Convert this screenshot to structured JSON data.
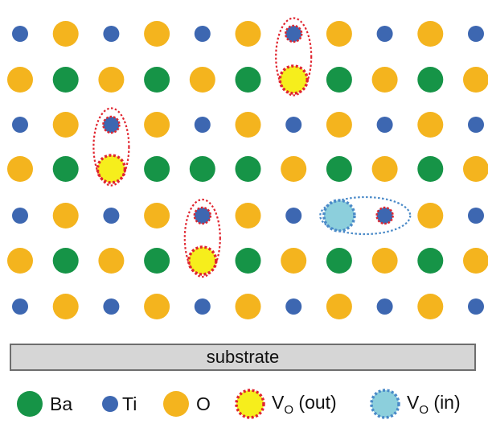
{
  "colors": {
    "ba": "#169447",
    "ti": "#3d67b1",
    "o": "#f4b41e",
    "vo_out_fill": "#f6ee1c",
    "vo_out_ring": "#e0252f",
    "vo_in_fill": "#8ccfdc",
    "vo_in_ring": "#4a8ac8",
    "ellipse_red": "#e0252f",
    "ellipse_blue": "#4a8ac8"
  },
  "lattice": {
    "rows": [
      [
        "ti",
        "o",
        "ti",
        "o",
        "ti",
        "o",
        "ti*",
        "o",
        "ti",
        "o",
        "ti"
      ],
      [
        "o",
        "ba",
        "o",
        "ba",
        "o",
        "ba",
        "vo_out",
        "ba",
        "o",
        "ba",
        "o"
      ],
      [
        "ti",
        "o",
        "ti*",
        "o",
        "ti",
        "o",
        "ti",
        "o",
        "ti",
        "o",
        "ti"
      ],
      [
        "o",
        "ba",
        "vo_out",
        "ba",
        "ba",
        "ba",
        "o",
        "ba",
        "o",
        "ba",
        "o"
      ],
      [
        "ti",
        "o",
        "ti",
        "o",
        "ti*",
        "o",
        "ti",
        "vo_in",
        "ti*",
        "o",
        "ti"
      ],
      [
        "o",
        "ba",
        "o",
        "ba",
        "vo_out",
        "ba",
        "o",
        "ba",
        "o",
        "ba",
        "o"
      ],
      [
        "ti",
        "o",
        "ti",
        "o",
        "ti",
        "o",
        "ti",
        "o",
        "ti",
        "o",
        "ti"
      ]
    ],
    "defect_pairs": [
      {
        "type": "out",
        "row": 0,
        "col": 6,
        "span": 2
      },
      {
        "type": "out",
        "row": 2,
        "col": 2,
        "span": 2
      },
      {
        "type": "out",
        "row": 4,
        "col": 4,
        "span": 2
      },
      {
        "type": "in",
        "row": 4,
        "col": 7,
        "span_cols": 2
      }
    ]
  },
  "substrate": {
    "label": "substrate"
  },
  "legend": {
    "ba": "Ba",
    "ti": "Ti",
    "o": "O",
    "vo_out": {
      "main": "V",
      "sub": "O",
      "suffix": " (out)"
    },
    "vo_in": {
      "main": "V",
      "sub": "O",
      "suffix": " (in)"
    }
  }
}
